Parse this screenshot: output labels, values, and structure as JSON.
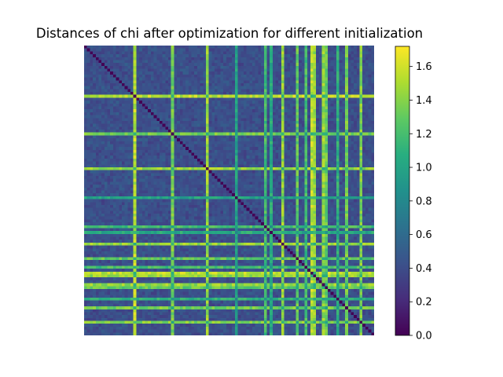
{
  "chart_data": {
    "type": "heatmap",
    "title": "Distances of chi after optimization for different initialization",
    "n": 100,
    "diagonal_value": 0.0,
    "background_mean": 0.42,
    "background_spread": 0.12,
    "highlight_indices": [
      17,
      30,
      42,
      52,
      62,
      64,
      68,
      73,
      76,
      78,
      79,
      82,
      83,
      87,
      90,
      95
    ],
    "highlight_values": [
      1.55,
      1.35,
      1.45,
      1.0,
      1.2,
      1.05,
      1.45,
      1.3,
      1.2,
      1.55,
      1.45,
      1.45,
      1.3,
      1.1,
      1.35,
      1.4
    ],
    "colorbar": {
      "min": 0.0,
      "max": 1.72,
      "ticks": [
        0.0,
        0.2,
        0.4,
        0.6,
        0.8,
        1.0,
        1.2,
        1.4,
        1.6
      ],
      "tick_labels": [
        "0.0",
        "0.2",
        "0.4",
        "0.6",
        "0.8",
        "1.0",
        "1.2",
        "1.4",
        "1.6"
      ],
      "colormap": "viridis"
    }
  }
}
